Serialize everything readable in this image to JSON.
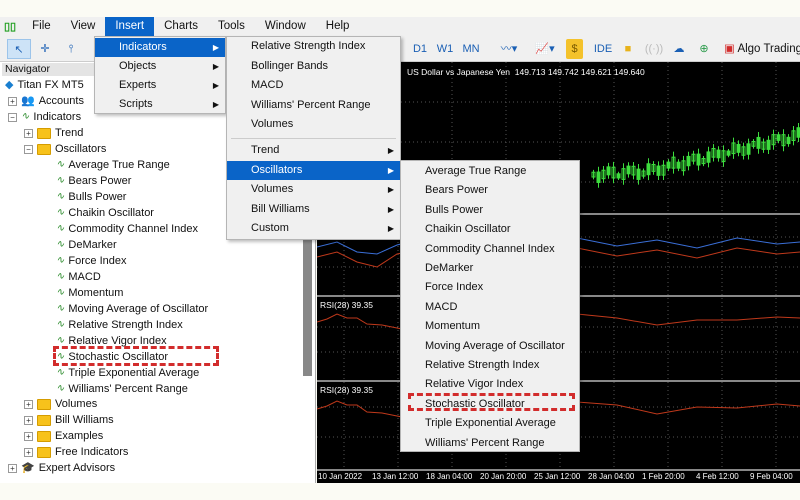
{
  "menubar": {
    "items": [
      "File",
      "View",
      "Insert",
      "Charts",
      "Tools",
      "Window",
      "Help"
    ],
    "active": "Insert"
  },
  "toolbar": {
    "timeframes": [
      "D1",
      "W1",
      "MN"
    ],
    "ide": "IDE",
    "algo_trading": "Algo Trading"
  },
  "navigator": {
    "title": "Navigator",
    "root": "Titan FX MT5",
    "accounts": "Accounts",
    "indicators": "Indicators",
    "folders_top": [
      "Trend",
      "Oscillators"
    ],
    "oscillators": [
      "Average True Range",
      "Bears Power",
      "Bulls Power",
      "Chaikin Oscillator",
      "Commodity Channel Index",
      "DeMarker",
      "Force Index",
      "MACD",
      "Momentum",
      "Moving Average of Oscillator",
      "Relative Strength Index",
      "Relative Vigor Index",
      "Stochastic Oscillator",
      "Triple Exponential Average",
      "Williams' Percent Range"
    ],
    "folders_bottom": [
      "Volumes",
      "Bill Williams",
      "Examples",
      "Free Indicators"
    ],
    "expert_advisors": "Expert Advisors",
    "highlighted": "Stochastic Oscillator"
  },
  "insert_menu": {
    "items": [
      "Indicators",
      "Objects",
      "Experts",
      "Scripts"
    ],
    "active": "Indicators"
  },
  "indicators_menu": {
    "top": [
      "Relative Strength Index",
      "Bollinger Bands",
      "MACD",
      "Williams' Percent Range",
      "Volumes"
    ],
    "groups": [
      "Trend",
      "Oscillators",
      "Volumes",
      "Bill Williams",
      "Custom"
    ],
    "active": "Oscillators"
  },
  "oscillators_menu": {
    "items": [
      "Average True Range",
      "Bears Power",
      "Bulls Power",
      "Chaikin Oscillator",
      "Commodity Channel Index",
      "DeMarker",
      "Force Index",
      "MACD",
      "Momentum",
      "Moving Average of Oscillator",
      "Relative Strength Index",
      "Relative Vigor Index",
      "Stochastic Oscillator",
      "Triple Exponential Average",
      "Williams' Percent Range"
    ],
    "highlighted": "Stochastic Oscillator"
  },
  "chart": {
    "symbol": "US Dollar vs Japanese Yen",
    "ohlc": "149.713 149.742 149.621 149.640",
    "rsi_label_1": "RSI(28) 39.35",
    "rsi_label_2": "RSI(28) 39.35",
    "dates": [
      "10 Jan 2022",
      "13 Jan 12:00",
      "18 Jan 04:00",
      "20 Jan 20:00",
      "25 Jan 12:00",
      "28 Jan 04:00",
      "1 Feb 20:00",
      "4 Feb 12:00",
      "9 Feb 04:00"
    ]
  },
  "colors": {
    "highlight": "#0a64c8",
    "annotation": "#d22c2c",
    "rsi_line": "#c0391b",
    "candle": "#3ddc3d"
  }
}
